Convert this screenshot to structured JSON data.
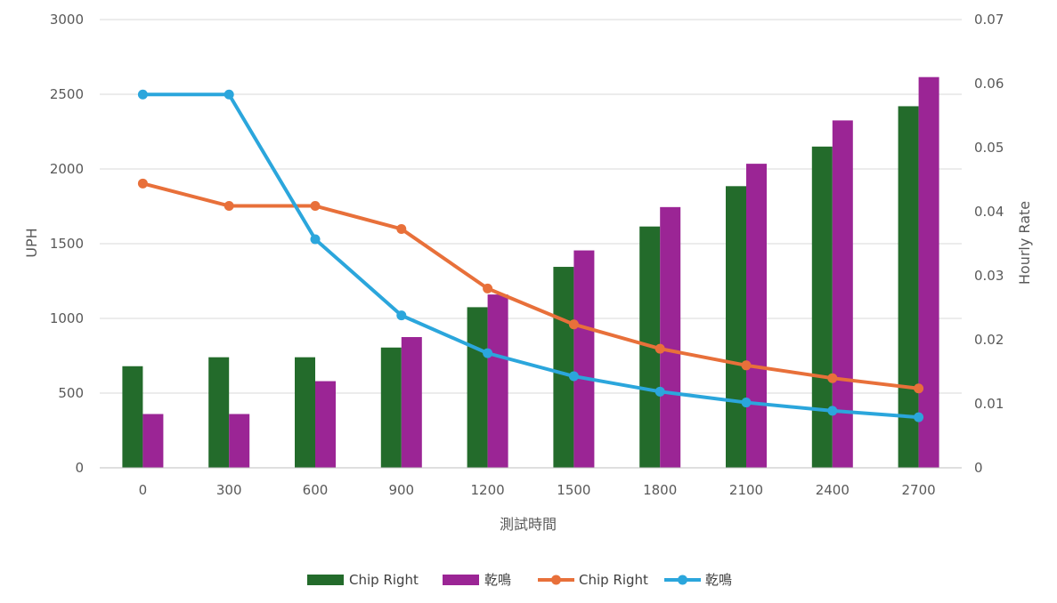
{
  "chart_data": {
    "type": "bar",
    "title": "",
    "x": [
      0,
      300,
      600,
      900,
      1200,
      1500,
      1800,
      2100,
      2400,
      2700
    ],
    "categories": [
      "0",
      "300",
      "600",
      "900",
      "1200",
      "1500",
      "1800",
      "2100",
      "2400",
      "2700"
    ],
    "xlabel": "測試時間",
    "ylabel": "UPH",
    "y2label": "Hourly Rate",
    "ylim": [
      0,
      3000
    ],
    "y2lim": [
      0,
      0.07
    ],
    "yticks": [
      "0",
      "500",
      "1000",
      "1500",
      "2000",
      "2500",
      "3000"
    ],
    "y2ticks": [
      "0",
      "0.01",
      "0.02",
      "0.03",
      "0.04",
      "0.05",
      "0.06",
      "0.07"
    ],
    "grid": true,
    "legend_position": "bottom",
    "series": [
      {
        "name": "Chip Right",
        "type": "bar",
        "axis": "left",
        "color": "#236b2b",
        "values": [
          680,
          740,
          740,
          805,
          1075,
          1345,
          1615,
          1885,
          2150,
          2420
        ]
      },
      {
        "name": "乾鳴",
        "type": "bar",
        "axis": "left",
        "color": "#9b2595",
        "values": [
          360,
          360,
          580,
          875,
          1160,
          1455,
          1745,
          2035,
          2325,
          2615
        ]
      },
      {
        "name": "Chip Right",
        "type": "line",
        "axis": "right",
        "color": "#e8703a",
        "values": [
          0.0444,
          0.0409,
          0.0409,
          0.0373,
          0.028,
          0.0224,
          0.0186,
          0.016,
          0.014,
          0.0124
        ]
      },
      {
        "name": "乾鳴",
        "type": "line",
        "axis": "right",
        "color": "#2ba6dc",
        "values": [
          0.0583,
          0.0583,
          0.0357,
          0.0238,
          0.0179,
          0.0143,
          0.0119,
          0.0102,
          0.0089,
          0.0079
        ]
      }
    ]
  }
}
